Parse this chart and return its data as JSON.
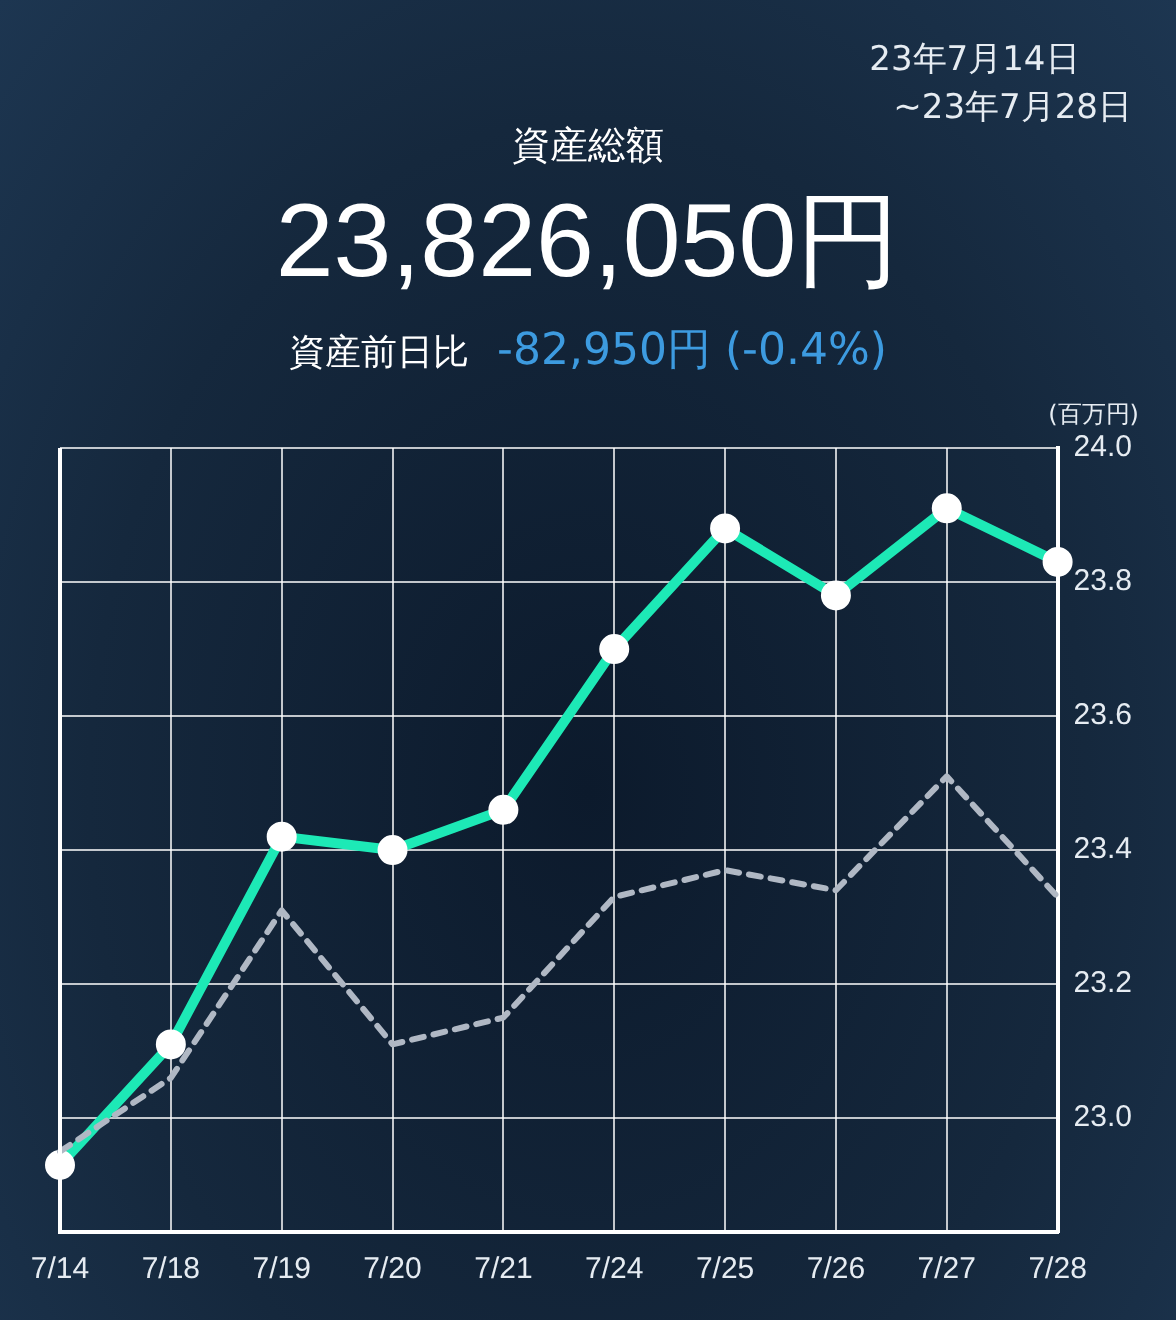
{
  "chart_data": {
    "type": "line",
    "title": "資産総額",
    "subtitle": "23,826,050円",
    "annotations": [
      "23年7月14日",
      "~23年7月28日",
      "資産前日比",
      "-82,950円 (-0.4%)"
    ],
    "ylabel": "(百万円)",
    "categories": [
      "7/14",
      "7/18",
      "7/19",
      "7/20",
      "7/21",
      "7/24",
      "7/25",
      "7/26",
      "7/27",
      "7/28"
    ],
    "series": [
      {
        "color": "#1de9b6",
        "marker": "circle",
        "line_style": "solid",
        "values": [
          22.93,
          23.11,
          23.42,
          23.4,
          23.46,
          23.7,
          23.88,
          23.78,
          23.91,
          23.83
        ]
      },
      {
        "color": "#b0b8c4",
        "marker": "none",
        "line_style": "dashed",
        "values": [
          22.95,
          23.06,
          23.31,
          23.11,
          23.15,
          23.33,
          23.37,
          23.34,
          23.51,
          23.33
        ]
      }
    ],
    "ylim": [
      22.83,
      24.0
    ],
    "yticks": [
      {
        "value": 23,
        "label": "23.0"
      },
      {
        "value": 23.2,
        "label": "23.2"
      },
      {
        "value": 23.4,
        "label": "23.4"
      },
      {
        "value": 23.6,
        "label": "23.6"
      },
      {
        "value": 23.8,
        "label": "23.8"
      },
      {
        "value": 24,
        "label": "24.0"
      }
    ],
    "grid": true,
    "legend": false
  }
}
